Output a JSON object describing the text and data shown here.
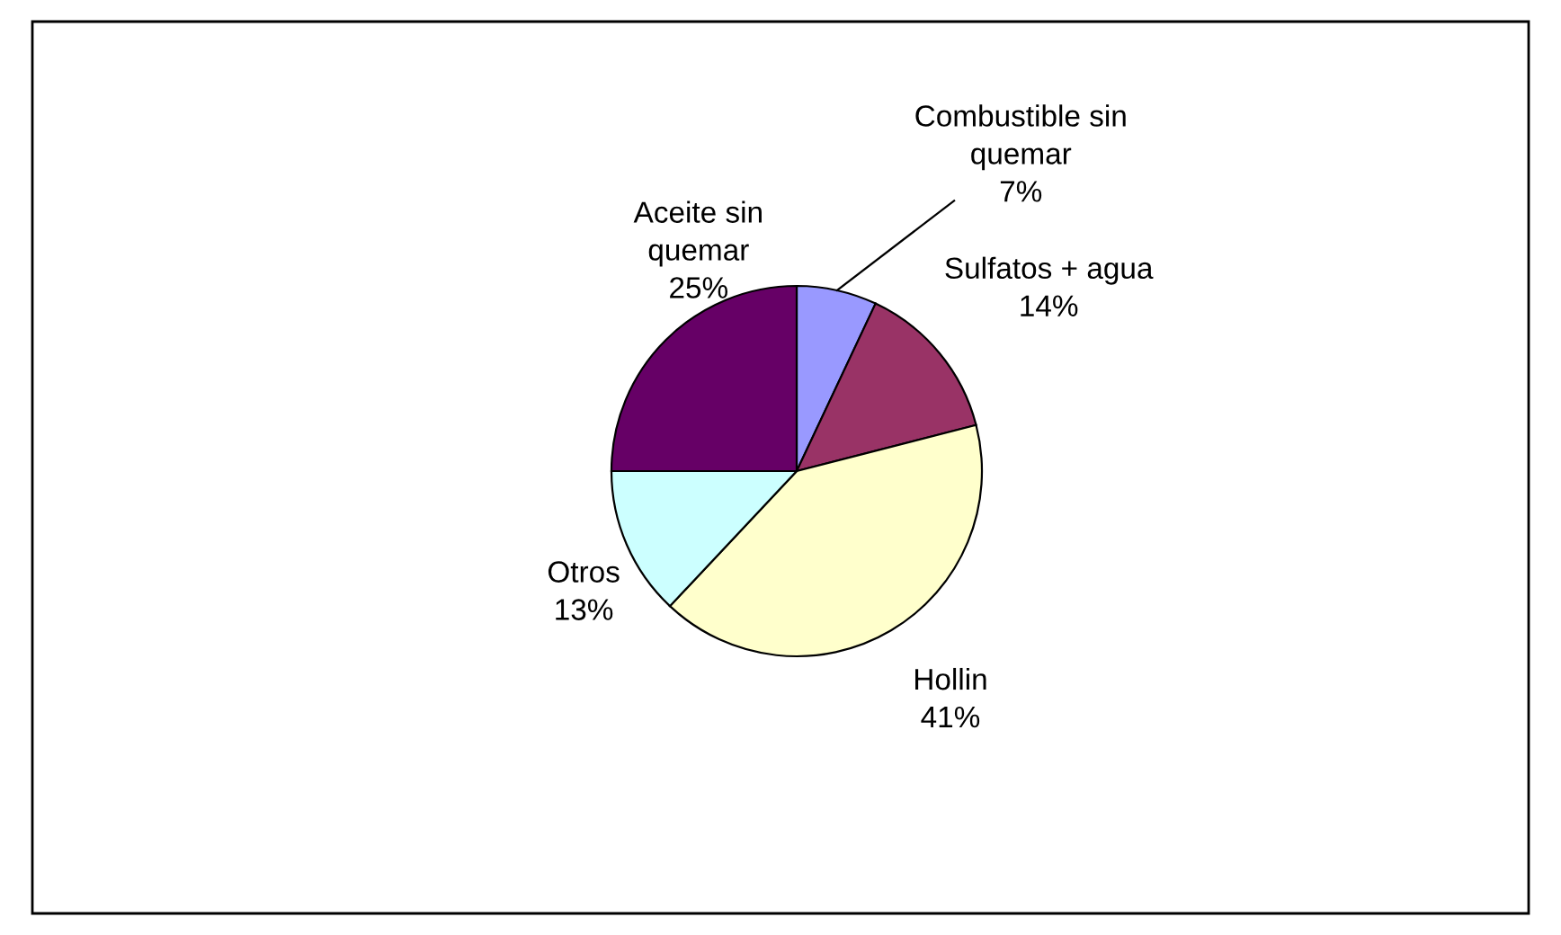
{
  "chart_data": {
    "type": "pie",
    "categories": [
      "Combustible sin quemar",
      "Sulfatos + agua",
      "Hollin",
      "Otros",
      "Aceite sin quemar"
    ],
    "values": [
      7,
      14,
      41,
      13,
      25
    ],
    "colors": [
      "#9999ff",
      "#993366",
      "#ffffcc",
      "#ccffff",
      "#660066"
    ],
    "value_labels": [
      "7%",
      "14%",
      "41%",
      "13%",
      "25%"
    ]
  }
}
